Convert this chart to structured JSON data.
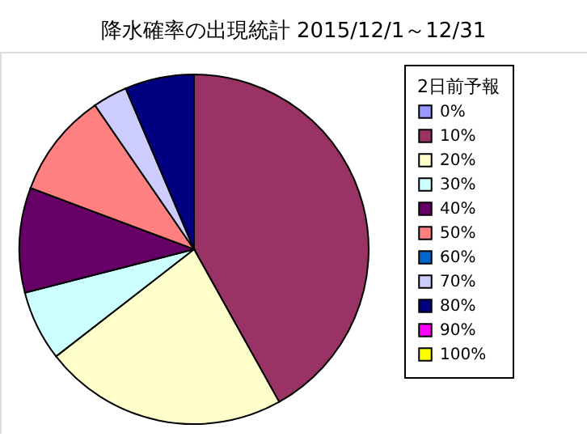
{
  "chart_data": {
    "type": "pie",
    "title": "降水確率の出現統計 2015/12/1～12/31",
    "legend_title": "2日前予報",
    "legend": "right",
    "categories": [
      "0%",
      "10%",
      "20%",
      "30%",
      "40%",
      "50%",
      "60%",
      "70%",
      "80%",
      "90%",
      "100%"
    ],
    "values": [
      0,
      41.9,
      22.6,
      6.5,
      9.7,
      9.7,
      0,
      3.2,
      6.4,
      0,
      0
    ],
    "colors": [
      "#9999ff",
      "#993366",
      "#ffffcc",
      "#ccffff",
      "#660066",
      "#ff8080",
      "#0066cc",
      "#ccccff",
      "#000080",
      "#ff00ff",
      "#ffff00"
    ]
  }
}
